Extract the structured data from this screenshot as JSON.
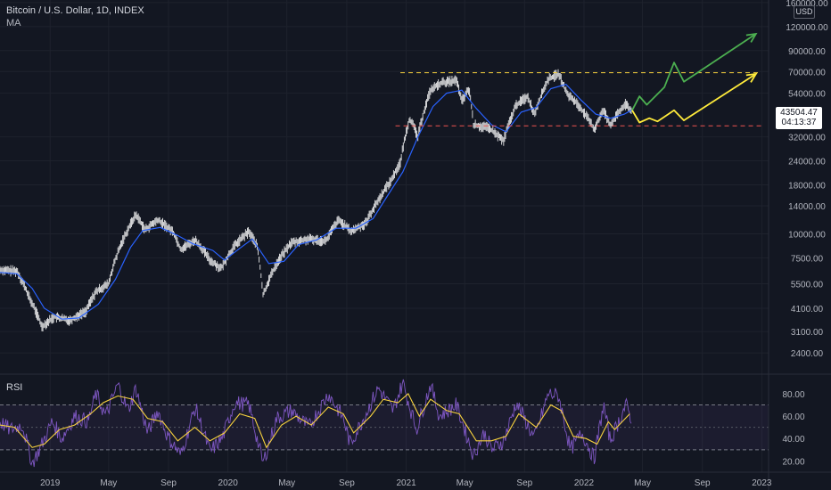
{
  "header": {
    "title": "Bitcoin / U.S. Dollar, 1D, INDEX",
    "indicator": "MA",
    "currency": "USD"
  },
  "price_badge": {
    "price": "43504.47",
    "countdown": "04:13:37"
  },
  "rsi": {
    "label": "RSI",
    "ticks": [
      "80.00",
      "60.00",
      "40.00",
      "20.00"
    ]
  },
  "colors": {
    "background": "#131722",
    "ma_line": "#2962ff",
    "rsi_line": "#7e57c2",
    "rsi_ma": "#f7d23e",
    "resistance": "#f7d23e",
    "support": "#ef5350",
    "projection_green": "#4caf50",
    "projection_yellow": "#ffeb3b",
    "candle": "#ffffff"
  },
  "chart_data": {
    "type": "line",
    "title": "Bitcoin / U.S. Dollar, 1D, INDEX",
    "scale": "log",
    "y_ticks": [
      160000,
      120000,
      90000,
      70000,
      54000,
      32000,
      24000,
      18000,
      14000,
      10000,
      7500,
      5500,
      4100,
      3100,
      2400
    ],
    "y_tick_labels": [
      "160000.00",
      "120000.00",
      "90000.00",
      "70000.00",
      "54000.00",
      "32000.00",
      "24000.00",
      "18000.00",
      "14000.00",
      "10000.00",
      "7500.00",
      "5500.00",
      "4100.00",
      "3100.00",
      "2400.00"
    ],
    "x_tick_labels": [
      "2019",
      "May",
      "Sep",
      "2020",
      "May",
      "Sep",
      "2021",
      "May",
      "Sep",
      "2022",
      "May",
      "Sep",
      "2023"
    ],
    "x_ticks": [
      "2019-01-01",
      "2019-05-01",
      "2019-09-01",
      "2020-01-01",
      "2020-05-01",
      "2020-09-01",
      "2021-01-01",
      "2021-05-01",
      "2021-09-01",
      "2022-01-01",
      "2022-05-01",
      "2022-09-01",
      "2023-01-01"
    ],
    "x_range": [
      "2018-09-20",
      "2023-01-15"
    ],
    "ylim": [
      1900,
      165000
    ],
    "price": [
      [
        "2018-09-20",
        6500
      ],
      [
        "2018-10-25",
        6400
      ],
      [
        "2018-11-20",
        4600
      ],
      [
        "2018-12-15",
        3300
      ],
      [
        "2019-01-10",
        3700
      ],
      [
        "2019-02-10",
        3550
      ],
      [
        "2019-03-15",
        3950
      ],
      [
        "2019-04-05",
        5000
      ],
      [
        "2019-05-01",
        5500
      ],
      [
        "2019-05-20",
        8000
      ],
      [
        "2019-06-26",
        12600
      ],
      [
        "2019-07-15",
        10500
      ],
      [
        "2019-08-10",
        11800
      ],
      [
        "2019-09-10",
        10300
      ],
      [
        "2019-09-26",
        8300
      ],
      [
        "2019-10-26",
        9300
      ],
      [
        "2019-11-25",
        7300
      ],
      [
        "2019-12-18",
        6600
      ],
      [
        "2020-01-15",
        8700
      ],
      [
        "2020-02-13",
        10300
      ],
      [
        "2020-03-01",
        8600
      ],
      [
        "2020-03-13",
        4800
      ],
      [
        "2020-04-10",
        7000
      ],
      [
        "2020-05-10",
        9000
      ],
      [
        "2020-06-15",
        9400
      ],
      [
        "2020-07-20",
        9200
      ],
      [
        "2020-08-15",
        11800
      ],
      [
        "2020-09-10",
        10300
      ],
      [
        "2020-10-10",
        11400
      ],
      [
        "2020-11-05",
        15000
      ],
      [
        "2020-12-01",
        19000
      ],
      [
        "2020-12-20",
        23500
      ],
      [
        "2021-01-08",
        40000
      ],
      [
        "2021-01-25",
        32000
      ],
      [
        "2021-02-20",
        56000
      ],
      [
        "2021-03-13",
        61000
      ],
      [
        "2021-04-14",
        63000
      ],
      [
        "2021-04-25",
        49000
      ],
      [
        "2021-05-10",
        57000
      ],
      [
        "2021-05-19",
        37000
      ],
      [
        "2021-06-20",
        35500
      ],
      [
        "2021-07-20",
        30500
      ],
      [
        "2021-08-15",
        47000
      ],
      [
        "2021-09-07",
        52000
      ],
      [
        "2021-09-21",
        42000
      ],
      [
        "2021-10-20",
        64000
      ],
      [
        "2021-11-10",
        68000
      ],
      [
        "2021-11-26",
        54000
      ],
      [
        "2021-12-20",
        47000
      ],
      [
        "2022-01-22",
        35000
      ],
      [
        "2022-02-10",
        44000
      ],
      [
        "2022-02-24",
        37000
      ],
      [
        "2022-03-28",
        47500
      ],
      [
        "2022-04-08",
        43504
      ]
    ],
    "moving_average": [
      [
        "2018-09-20",
        6300
      ],
      [
        "2018-10-25",
        6200
      ],
      [
        "2018-11-25",
        5200
      ],
      [
        "2018-12-20",
        4100
      ],
      [
        "2019-01-25",
        3600
      ],
      [
        "2019-03-01",
        3650
      ],
      [
        "2019-04-10",
        4300
      ],
      [
        "2019-05-15",
        5800
      ],
      [
        "2019-06-15",
        8500
      ],
      [
        "2019-07-10",
        10400
      ],
      [
        "2019-08-15",
        10800
      ],
      [
        "2019-09-20",
        9800
      ],
      [
        "2019-10-20",
        8900
      ],
      [
        "2019-12-01",
        8200
      ],
      [
        "2019-12-25",
        7300
      ],
      [
        "2020-01-25",
        8400
      ],
      [
        "2020-02-20",
        9400
      ],
      [
        "2020-03-25",
        7000
      ],
      [
        "2020-04-25",
        7200
      ],
      [
        "2020-05-25",
        8800
      ],
      [
        "2020-07-01",
        9300
      ],
      [
        "2020-08-10",
        10700
      ],
      [
        "2020-09-20",
        10700
      ],
      [
        "2020-10-25",
        12000
      ],
      [
        "2020-11-25",
        16000
      ],
      [
        "2020-12-25",
        21000
      ],
      [
        "2021-01-25",
        32000
      ],
      [
        "2021-02-25",
        46000
      ],
      [
        "2021-03-25",
        54000
      ],
      [
        "2021-04-25",
        56000
      ],
      [
        "2021-05-25",
        45000
      ],
      [
        "2021-06-25",
        37000
      ],
      [
        "2021-07-25",
        34000
      ],
      [
        "2021-08-25",
        43000
      ],
      [
        "2021-09-25",
        45500
      ],
      [
        "2021-10-25",
        57000
      ],
      [
        "2021-11-25",
        60000
      ],
      [
        "2021-12-25",
        50000
      ],
      [
        "2022-01-25",
        42000
      ],
      [
        "2022-02-25",
        40000
      ],
      [
        "2022-03-25",
        42000
      ],
      [
        "2022-04-08",
        44000
      ]
    ],
    "resistance_level": 69000,
    "resistance_range": [
      "2020-12-20",
      "2022-12-31"
    ],
    "support_level": 36500,
    "support_range": [
      "2020-12-10",
      "2022-12-31"
    ],
    "projection_green": [
      [
        "2022-04-10",
        44000
      ],
      [
        "2022-04-25",
        52000
      ],
      [
        "2022-05-10",
        47000
      ],
      [
        "2022-06-15",
        58000
      ],
      [
        "2022-07-05",
        78000
      ],
      [
        "2022-07-25",
        62000
      ],
      [
        "2022-12-20",
        110000
      ]
    ],
    "projection_yellow": [
      [
        "2022-04-10",
        44000
      ],
      [
        "2022-04-25",
        38000
      ],
      [
        "2022-05-15",
        40000
      ],
      [
        "2022-06-01",
        38500
      ],
      [
        "2022-07-05",
        44000
      ],
      [
        "2022-07-25",
        39000
      ],
      [
        "2022-12-20",
        68000
      ]
    ],
    "rsi_ylim": [
      10,
      95
    ],
    "rsi_levels": [
      70,
      30
    ],
    "rsi_band": [
      40,
      60
    ],
    "rsi": [
      [
        "2018-09-20",
        55
      ],
      [
        "2018-10-10",
        48
      ],
      [
        "2018-11-05",
        52
      ],
      [
        "2018-11-25",
        18
      ],
      [
        "2018-12-10",
        30
      ],
      [
        "2019-01-05",
        55
      ],
      [
        "2019-01-25",
        40
      ],
      [
        "2019-02-20",
        60
      ],
      [
        "2019-03-20",
        55
      ],
      [
        "2019-04-05",
        80
      ],
      [
        "2019-04-25",
        60
      ],
      [
        "2019-05-20",
        88
      ],
      [
        "2019-06-10",
        65
      ],
      [
        "2019-06-26",
        85
      ],
      [
        "2019-07-20",
        45
      ],
      [
        "2019-08-10",
        65
      ],
      [
        "2019-08-30",
        42
      ],
      [
        "2019-09-26",
        25
      ],
      [
        "2019-10-26",
        68
      ],
      [
        "2019-11-25",
        28
      ],
      [
        "2019-12-20",
        40
      ],
      [
        "2020-01-15",
        72
      ],
      [
        "2020-02-13",
        70
      ],
      [
        "2020-03-13",
        18
      ],
      [
        "2020-04-10",
        58
      ],
      [
        "2020-05-10",
        65
      ],
      [
        "2020-06-15",
        50
      ],
      [
        "2020-07-25",
        80
      ],
      [
        "2020-08-25",
        58
      ],
      [
        "2020-09-08",
        35
      ],
      [
        "2020-10-10",
        62
      ],
      [
        "2020-11-05",
        85
      ],
      [
        "2020-12-05",
        65
      ],
      [
        "2020-12-25",
        90
      ],
      [
        "2021-01-22",
        48
      ],
      [
        "2021-02-20",
        88
      ],
      [
        "2021-03-10",
        60
      ],
      [
        "2021-04-14",
        70
      ],
      [
        "2021-05-19",
        25
      ],
      [
        "2021-06-10",
        45
      ],
      [
        "2021-06-26",
        30
      ],
      [
        "2021-07-20",
        38
      ],
      [
        "2021-08-15",
        72
      ],
      [
        "2021-09-21",
        40
      ],
      [
        "2021-10-20",
        80
      ],
      [
        "2021-11-10",
        78
      ],
      [
        "2021-12-04",
        30
      ],
      [
        "2021-12-28",
        45
      ],
      [
        "2022-01-22",
        22
      ],
      [
        "2022-02-10",
        70
      ],
      [
        "2022-02-24",
        38
      ],
      [
        "2022-03-28",
        70
      ],
      [
        "2022-04-08",
        58
      ]
    ],
    "rsi_ma": [
      [
        "2018-09-20",
        52
      ],
      [
        "2018-10-20",
        50
      ],
      [
        "2018-11-25",
        32
      ],
      [
        "2018-12-20",
        35
      ],
      [
        "2019-01-20",
        48
      ],
      [
        "2019-02-20",
        52
      ],
      [
        "2019-03-25",
        62
      ],
      [
        "2019-04-20",
        72
      ],
      [
        "2019-05-20",
        78
      ],
      [
        "2019-06-20",
        75
      ],
      [
        "2019-07-20",
        58
      ],
      [
        "2019-08-20",
        55
      ],
      [
        "2019-09-20",
        38
      ],
      [
        "2019-10-25",
        50
      ],
      [
        "2019-11-25",
        38
      ],
      [
        "2019-12-25",
        45
      ],
      [
        "2020-01-25",
        62
      ],
      [
        "2020-02-25",
        58
      ],
      [
        "2020-03-20",
        32
      ],
      [
        "2020-04-20",
        52
      ],
      [
        "2020-05-20",
        60
      ],
      [
        "2020-06-20",
        52
      ],
      [
        "2020-07-25",
        68
      ],
      [
        "2020-08-25",
        62
      ],
      [
        "2020-09-15",
        45
      ],
      [
        "2020-10-20",
        60
      ],
      [
        "2020-11-15",
        75
      ],
      [
        "2020-12-15",
        72
      ],
      [
        "2021-01-05",
        80
      ],
      [
        "2021-01-28",
        60
      ],
      [
        "2021-02-20",
        75
      ],
      [
        "2021-03-25",
        65
      ],
      [
        "2021-04-20",
        62
      ],
      [
        "2021-05-25",
        38
      ],
      [
        "2021-06-25",
        38
      ],
      [
        "2021-07-25",
        42
      ],
      [
        "2021-08-20",
        62
      ],
      [
        "2021-09-25",
        50
      ],
      [
        "2021-10-25",
        70
      ],
      [
        "2021-11-15",
        65
      ],
      [
        "2021-12-10",
        42
      ],
      [
        "2022-01-05",
        40
      ],
      [
        "2022-01-28",
        35
      ],
      [
        "2022-02-20",
        55
      ],
      [
        "2022-03-05",
        48
      ],
      [
        "2022-04-05",
        62
      ]
    ]
  }
}
